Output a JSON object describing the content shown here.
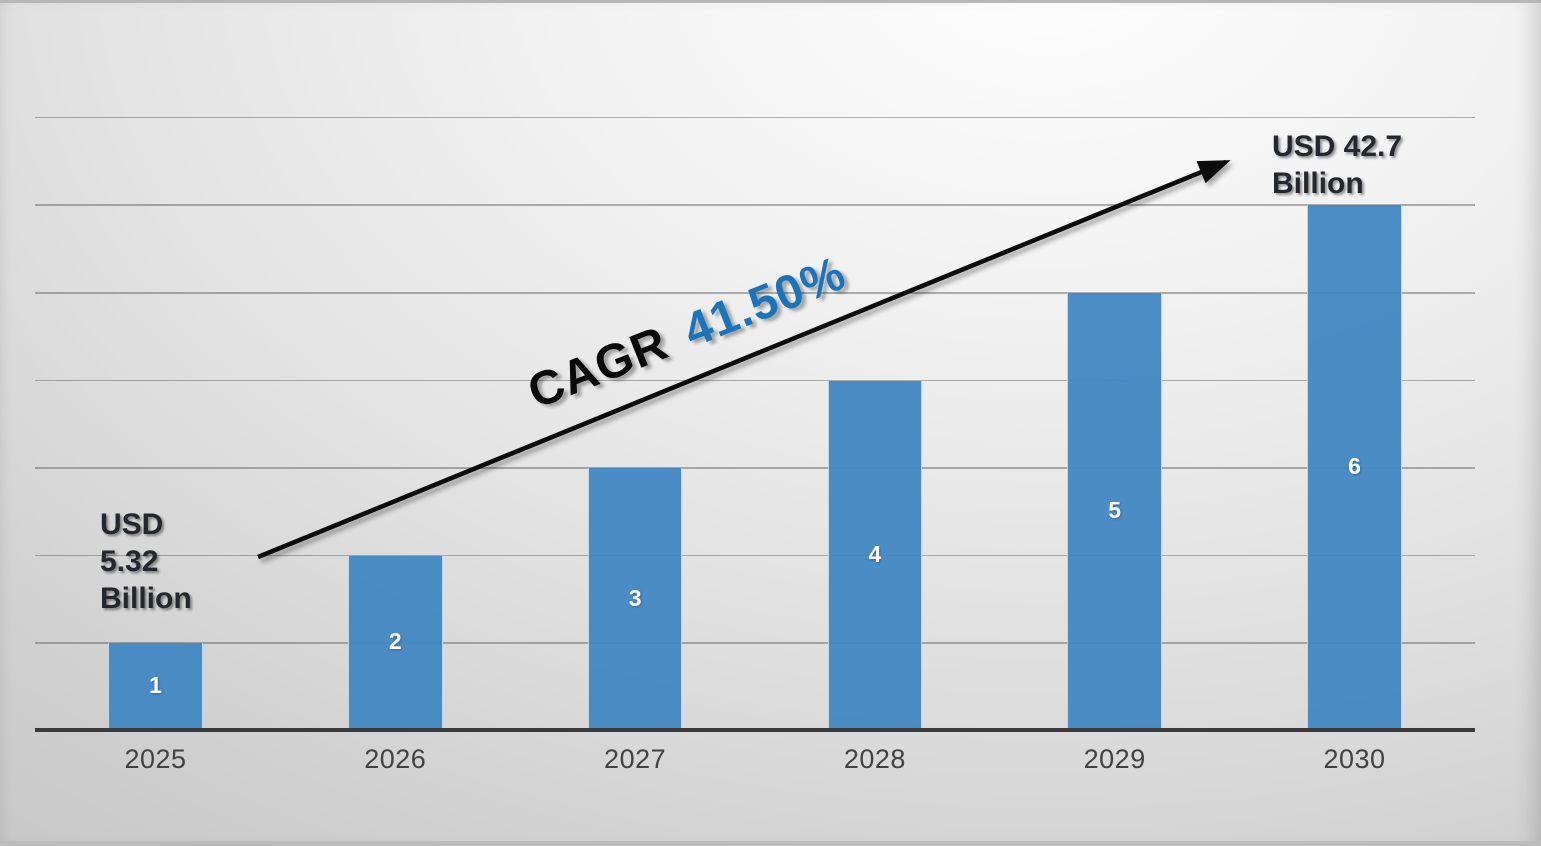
{
  "chart_data": {
    "type": "bar",
    "title": "",
    "xlabel": "",
    "ylabel": "",
    "categories": [
      "2025",
      "2026",
      "2027",
      "2028",
      "2029",
      "2030"
    ],
    "values": [
      1,
      2,
      3,
      4,
      5,
      6
    ],
    "bar_value_labels": [
      "1",
      "2",
      "3",
      "4",
      "5",
      "6"
    ],
    "ylim": [
      0,
      7
    ],
    "grid": true,
    "gridline_count": 7,
    "legend": false,
    "annotations": {
      "start_value": {
        "lines": [
          "USD",
          "5.32",
          "Billion"
        ]
      },
      "end_value": {
        "lines": [
          "USD 42.7",
          "Billion"
        ]
      },
      "cagr": {
        "label": "CAGR",
        "value": "41.50%"
      },
      "trend_arrow": "up-right"
    }
  },
  "annotations": {
    "start_value": {
      "lines": [
        "USD",
        "5.32",
        "Billion"
      ]
    },
    "end_value": {
      "lines": [
        "USD 42.7",
        "Billion"
      ]
    },
    "cagr": {
      "label": "CAGR",
      "value": "41.50%"
    }
  },
  "colors": {
    "bar_blue": "rgba(66,135,195,0.95)",
    "bar_blue_hex": "#4a8ec6",
    "cagr_value_blue": "#1a74bc",
    "cagr_label_black": "#0a0a0a",
    "arrow_black": "#0c0c0c",
    "axis_dark": "#3a3a3a",
    "note_text_dark": "#24272d",
    "bar_label_white": "#ffffff",
    "tick_text": "#424242"
  }
}
